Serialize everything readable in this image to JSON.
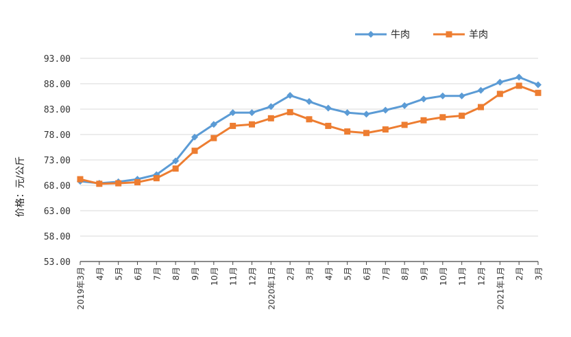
{
  "chart_data": {
    "type": "line",
    "ylabel": "价格：元/公斤",
    "ylim": [
      53,
      93
    ],
    "yticks": [
      "53.00",
      "58.00",
      "63.00",
      "68.00",
      "73.00",
      "78.00",
      "83.00",
      "88.00",
      "93.00"
    ],
    "grid": true,
    "legend_position": "top-right",
    "categories": [
      "2019年3月",
      "4月",
      "5月",
      "6月",
      "7月",
      "8月",
      "9月",
      "10月",
      "11月",
      "12月",
      "2020年1月",
      "2月",
      "3月",
      "4月",
      "5月",
      "6月",
      "7月",
      "8月",
      "9月",
      "10月",
      "11月",
      "12月",
      "2021年1月",
      "2月",
      "3月"
    ],
    "series": [
      {
        "name": "牛肉",
        "color": "#5B9BD5",
        "marker": "diamond",
        "values": [
          68.8,
          68.4,
          68.7,
          69.2,
          70.1,
          72.8,
          77.5,
          80.0,
          82.3,
          82.3,
          83.5,
          85.7,
          84.5,
          83.2,
          82.3,
          82.0,
          82.8,
          83.7,
          85.0,
          85.6,
          85.6,
          86.7,
          88.3,
          89.3,
          87.8
        ]
      },
      {
        "name": "羊肉",
        "color": "#ED7D31",
        "marker": "square",
        "values": [
          69.2,
          68.3,
          68.4,
          68.6,
          69.4,
          71.3,
          74.8,
          77.3,
          79.7,
          80.0,
          81.2,
          82.4,
          81.0,
          79.7,
          78.6,
          78.3,
          79.0,
          79.9,
          80.8,
          81.4,
          81.7,
          83.4,
          86.0,
          87.6,
          86.2
        ]
      }
    ]
  }
}
